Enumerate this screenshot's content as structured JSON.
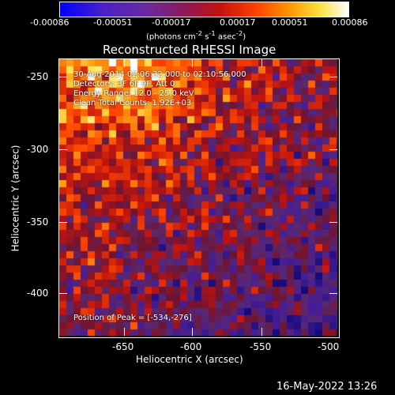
{
  "colorbar": {
    "ticks": [
      "-0.00086",
      "-0.00051",
      "-0.00017",
      "0.00017",
      "0.00051",
      "0.00086"
    ],
    "units_html": "(photons cm<sup>-2</sup> s<sup>-1</sup> asec<sup>-2</sup>)"
  },
  "plot": {
    "title": "Reconstructed RHESSI Image",
    "xlabel": "Heliocentric X (arcsec)",
    "ylabel": "Heliocentric Y (arcsec)",
    "xticks": [
      "-650",
      "-600",
      "-550",
      "-500"
    ],
    "yticks": [
      "-250",
      "-300",
      "-350",
      "-400"
    ],
    "xlim": [
      -690,
      -500
    ],
    "ylim": [
      -430,
      -240
    ]
  },
  "annotations": {
    "time": "30-Aug-2014 02:06:32.000 to 02:10:56.000",
    "detectors": "Detectors: 3F 6F 9F, Att 0",
    "energy": "Energy Range: 12.0 - 25.0 keV",
    "clean": "Clean    Total Counts: 1.92E+03",
    "peak": "Position of Peak = [-534,-276]"
  },
  "footer": {
    "timestamp": "16-May-2022 13:26"
  }
}
